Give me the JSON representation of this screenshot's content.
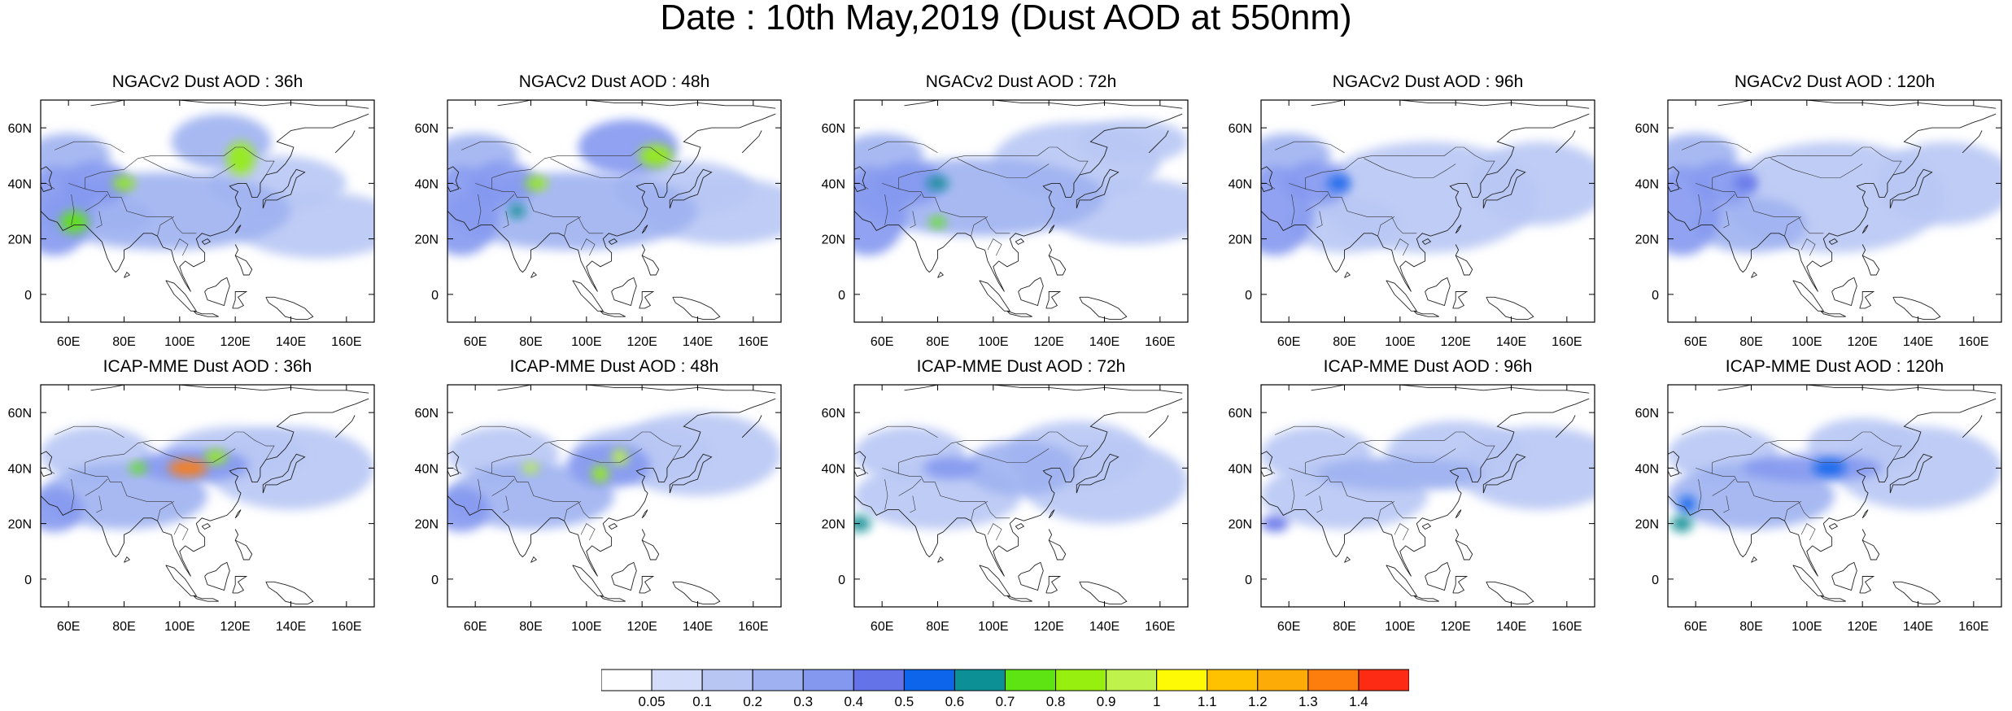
{
  "title": "Date : 10th May,2019 (Dust AOD at 550nm)",
  "panels": [
    {
      "title": "NGACv2 Dust AOD : 36h",
      "model": "NGACv2",
      "lead": "36h",
      "blobs": [
        [
          55,
          30,
          14,
          16,
          0.35
        ],
        [
          70,
          40,
          12,
          8,
          0.3
        ],
        [
          80,
          40,
          4,
          2.5,
          0.8
        ],
        [
          62,
          26,
          5,
          4,
          0.7
        ],
        [
          122,
          49,
          5,
          6,
          0.85
        ],
        [
          115,
          55,
          18,
          10,
          0.25
        ],
        [
          135,
          40,
          25,
          10,
          0.12
        ],
        [
          95,
          30,
          45,
          14,
          0.2
        ],
        [
          78,
          28,
          12,
          6,
          0.22
        ],
        [
          150,
          25,
          30,
          12,
          0.1
        ],
        [
          60,
          50,
          15,
          8,
          0.25
        ]
      ]
    },
    {
      "title": "NGACv2 Dust AOD : 48h",
      "model": "NGACv2",
      "lead": "48h",
      "blobs": [
        [
          55,
          30,
          14,
          16,
          0.35
        ],
        [
          70,
          40,
          12,
          8,
          0.3
        ],
        [
          82,
          40,
          4,
          2.5,
          0.8
        ],
        [
          75,
          30,
          3,
          2.5,
          0.6
        ],
        [
          125,
          50,
          6,
          4,
          0.85
        ],
        [
          115,
          53,
          18,
          10,
          0.3
        ],
        [
          135,
          38,
          25,
          10,
          0.15
        ],
        [
          95,
          30,
          45,
          14,
          0.2
        ],
        [
          150,
          30,
          30,
          12,
          0.12
        ],
        [
          60,
          50,
          15,
          8,
          0.25
        ]
      ]
    },
    {
      "title": "NGACv2 Dust AOD : 72h",
      "model": "NGACv2",
      "lead": "72h",
      "blobs": [
        [
          55,
          30,
          14,
          16,
          0.35
        ],
        [
          70,
          40,
          12,
          8,
          0.3
        ],
        [
          80,
          40,
          4,
          2.5,
          0.6
        ],
        [
          80,
          26,
          3,
          2,
          0.7
        ],
        [
          130,
          48,
          30,
          14,
          0.15
        ],
        [
          150,
          55,
          20,
          8,
          0.15
        ],
        [
          95,
          35,
          45,
          14,
          0.2
        ],
        [
          150,
          30,
          30,
          12,
          0.12
        ],
        [
          60,
          50,
          15,
          8,
          0.22
        ]
      ]
    },
    {
      "title": "NGACv2 Dust AOD : 96h",
      "model": "NGACv2",
      "lead": "96h",
      "blobs": [
        [
          55,
          30,
          14,
          16,
          0.35
        ],
        [
          70,
          40,
          12,
          8,
          0.3
        ],
        [
          78,
          40,
          4,
          2.5,
          0.5
        ],
        [
          110,
          35,
          40,
          20,
          0.15
        ],
        [
          150,
          40,
          25,
          15,
          0.15
        ],
        [
          80,
          25,
          20,
          10,
          0.18
        ],
        [
          60,
          50,
          15,
          8,
          0.2
        ]
      ]
    },
    {
      "title": "NGACv2 Dust AOD : 120h",
      "model": "NGACv2",
      "lead": "120h",
      "blobs": [
        [
          55,
          30,
          14,
          16,
          0.35
        ],
        [
          70,
          40,
          12,
          8,
          0.3
        ],
        [
          78,
          40,
          4,
          2.5,
          0.45
        ],
        [
          110,
          35,
          40,
          20,
          0.15
        ],
        [
          150,
          40,
          25,
          15,
          0.15
        ],
        [
          80,
          25,
          20,
          10,
          0.2
        ],
        [
          60,
          50,
          15,
          8,
          0.2
        ]
      ]
    }
  ],
  "panels_row2": [
    {
      "title": "ICAP-MME Dust AOD : 36h",
      "model": "ICAP-MME",
      "lead": "36h",
      "blobs": [
        [
          103,
          40,
          7,
          3,
          1.3
        ],
        [
          113,
          44,
          4,
          2.5,
          0.8
        ],
        [
          85,
          40,
          3,
          2,
          0.7
        ],
        [
          105,
          41,
          20,
          6,
          0.35
        ],
        [
          55,
          25,
          10,
          8,
          0.35
        ],
        [
          80,
          30,
          30,
          12,
          0.2
        ],
        [
          120,
          45,
          25,
          10,
          0.18
        ],
        [
          140,
          40,
          30,
          15,
          0.1
        ],
        [
          70,
          45,
          20,
          10,
          0.15
        ]
      ]
    },
    {
      "title": "ICAP-MME Dust AOD : 48h",
      "model": "ICAP-MME",
      "lead": "48h",
      "blobs": [
        [
          80,
          40,
          3,
          2,
          0.9
        ],
        [
          112,
          44,
          3,
          3,
          0.9
        ],
        [
          105,
          38,
          3,
          3,
          0.8
        ],
        [
          108,
          41,
          15,
          8,
          0.35
        ],
        [
          55,
          25,
          10,
          8,
          0.35
        ],
        [
          80,
          30,
          30,
          12,
          0.2
        ],
        [
          120,
          45,
          25,
          10,
          0.18
        ],
        [
          140,
          45,
          30,
          15,
          0.1
        ],
        [
          70,
          45,
          20,
          10,
          0.15
        ]
      ]
    },
    {
      "title": "ICAP-MME Dust AOD : 72h",
      "model": "ICAP-MME",
      "lead": "72h",
      "blobs": [
        [
          52,
          20,
          4,
          3,
          0.6
        ],
        [
          85,
          40,
          10,
          4,
          0.3
        ],
        [
          110,
          40,
          20,
          10,
          0.2
        ],
        [
          80,
          30,
          30,
          12,
          0.18
        ],
        [
          130,
          45,
          25,
          12,
          0.15
        ],
        [
          140,
          35,
          30,
          15,
          0.1
        ],
        [
          70,
          45,
          20,
          10,
          0.15
        ]
      ]
    },
    {
      "title": "ICAP-MME Dust AOD : 96h",
      "model": "ICAP-MME",
      "lead": "96h",
      "blobs": [
        [
          55,
          20,
          5,
          3,
          0.45
        ],
        [
          100,
          38,
          30,
          6,
          0.25
        ],
        [
          120,
          45,
          25,
          12,
          0.18
        ],
        [
          80,
          30,
          30,
          12,
          0.18
        ],
        [
          150,
          40,
          30,
          15,
          0.12
        ],
        [
          70,
          45,
          20,
          10,
          0.15
        ]
      ]
    },
    {
      "title": "ICAP-MME Dust AOD : 120h",
      "model": "ICAP-MME",
      "lead": "120h",
      "blobs": [
        [
          55,
          20,
          4,
          3,
          0.6
        ],
        [
          57,
          27,
          3,
          3,
          0.55
        ],
        [
          108,
          40,
          6,
          3,
          0.55
        ],
        [
          102,
          40,
          25,
          5,
          0.3
        ],
        [
          120,
          48,
          20,
          10,
          0.18
        ],
        [
          80,
          30,
          30,
          12,
          0.2
        ],
        [
          140,
          40,
          30,
          15,
          0.12
        ],
        [
          70,
          45,
          20,
          10,
          0.15
        ]
      ]
    }
  ],
  "map": {
    "lon_range": [
      50,
      170
    ],
    "lat_range": [
      -10,
      70
    ],
    "lon_ticks": [
      "60E",
      "80E",
      "100E",
      "120E",
      "140E",
      "160E"
    ],
    "lon_tick_values": [
      60,
      80,
      100,
      120,
      140,
      160
    ],
    "lat_ticks": [
      "60N",
      "40N",
      "20N",
      "0"
    ],
    "lat_tick_values": [
      60,
      40,
      20,
      0
    ]
  },
  "colorbar": {
    "labels": [
      "0.05",
      "0.1",
      "0.2",
      "0.3",
      "0.4",
      "0.5",
      "0.6",
      "0.7",
      "0.8",
      "0.9",
      "1",
      "1.1",
      "1.2",
      "1.3",
      "1.4"
    ],
    "thresholds": [
      0.05,
      0.1,
      0.2,
      0.3,
      0.4,
      0.5,
      0.6,
      0.7,
      0.8,
      0.9,
      1.0,
      1.1,
      1.2,
      1.3,
      1.4
    ],
    "colors": [
      "#ffffff",
      "#d3dcf8",
      "#b8c6f4",
      "#9fb1f1",
      "#8498ef",
      "#6473e8",
      "#0d65ec",
      "#0d8f96",
      "#5ee413",
      "#96ef0e",
      "#bff24a",
      "#fef905",
      "#fec201",
      "#fdab07",
      "#fd7d0d",
      "#fd2a14"
    ]
  }
}
